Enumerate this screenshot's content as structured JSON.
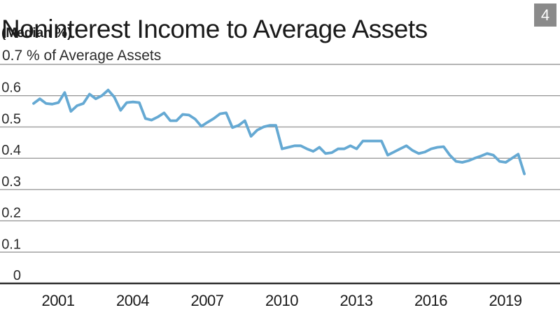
{
  "header": {
    "title": "Noninterest Income to Average Assets",
    "subtitle": "(Median %)",
    "page_badge": "4"
  },
  "colors": {
    "line_blue": "#65a9d3",
    "gridline_gray": "#9b9b9b",
    "baseline_dark": "#2e2e2e",
    "text_dark": "#1a1a1a",
    "tick_text": "#2b2b2b",
    "badge_gray": "#8a8a8a"
  },
  "chart_data": {
    "type": "line",
    "title": "Noninterest Income to Average Assets",
    "subtitle": "(Median %)",
    "ylabel_note": "% of Average Assets",
    "ylim": [
      0,
      0.7
    ],
    "y_ticks": [
      "0",
      "0.1",
      "0.2",
      "0.3",
      "0.4",
      "0.5",
      "0.6",
      "0.7"
    ],
    "x_ticks": [
      "2001",
      "2004",
      "2007",
      "2010",
      "2013",
      "2016",
      "2019"
    ],
    "grid": true,
    "legend": "none",
    "series": [
      {
        "start_year": 2000,
        "frequency": "quarterly",
        "values": [
          0.575,
          0.59,
          0.575,
          0.573,
          0.578,
          0.61,
          0.55,
          0.568,
          0.575,
          0.605,
          0.59,
          0.6,
          0.618,
          0.595,
          0.553,
          0.578,
          0.58,
          0.578,
          0.527,
          0.522,
          0.532,
          0.545,
          0.52,
          0.52,
          0.54,
          0.538,
          0.525,
          0.502,
          0.515,
          0.527,
          0.542,
          0.545,
          0.498,
          0.505,
          0.52,
          0.47,
          0.49,
          0.5,
          0.505,
          0.505,
          0.43,
          0.435,
          0.44,
          0.44,
          0.43,
          0.422,
          0.435,
          0.415,
          0.418,
          0.43,
          0.43,
          0.44,
          0.43,
          0.455,
          0.455,
          0.455,
          0.455,
          0.41,
          0.42,
          0.43,
          0.44,
          0.425,
          0.415,
          0.42,
          0.43,
          0.435,
          0.437,
          0.41,
          0.39,
          0.387,
          0.392,
          0.4,
          0.407,
          0.415,
          0.41,
          0.39,
          0.387,
          0.4,
          0.413,
          0.35
        ]
      }
    ]
  }
}
